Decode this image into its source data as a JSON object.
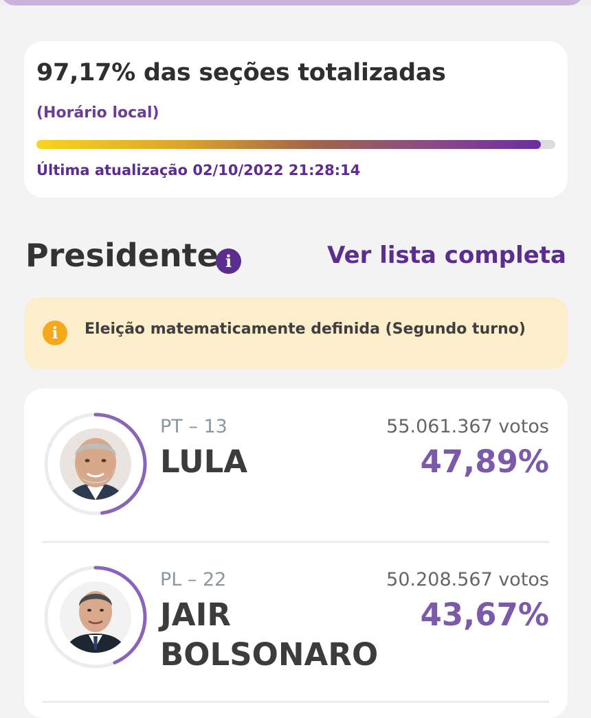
{
  "progress": {
    "title": "97,17% das seções totalizadas",
    "subtitle": "(Horário local)",
    "percent": 97.17,
    "updated": "Última atualização 02/10/2022 21:28:14"
  },
  "section": {
    "title": "Presidente",
    "info_icon": "info-icon",
    "see_list": "Ver lista completa"
  },
  "alert": {
    "icon": "info-icon",
    "text": "Eleição matematicamente definida (Segundo turno)"
  },
  "candidates": [
    {
      "party": "PT – 13",
      "name": "LULA",
      "votes": "55.061.367 votos",
      "percent_label": "47,89%",
      "percent": 47.89
    },
    {
      "party": "PL – 22",
      "name": "JAIR BOLSONARO",
      "votes": "50.208.567 votos",
      "percent_label": "43,67%",
      "percent": 43.67
    }
  ],
  "colors": {
    "accent": "#5b2d8e",
    "percent": "#7a5aa9",
    "alert_bg": "#fdeecb",
    "alert_icon": "#f5a81c"
  }
}
